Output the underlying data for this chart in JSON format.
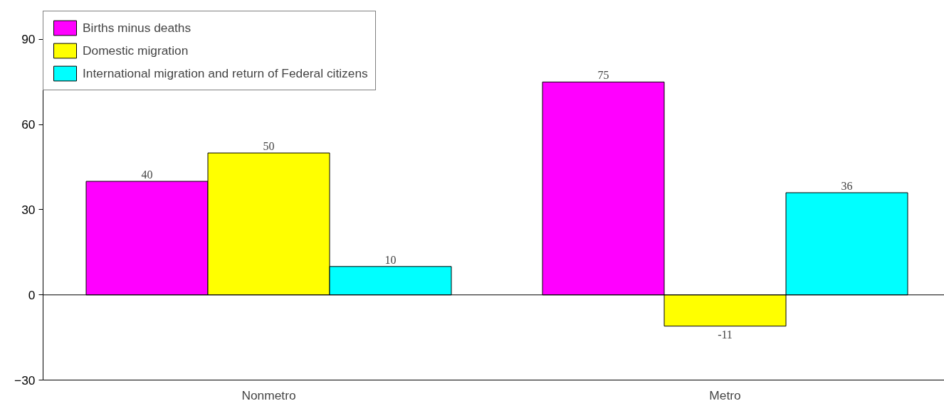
{
  "chart_data": {
    "type": "bar",
    "categories": [
      "Nonmetro",
      "Metro"
    ],
    "series": [
      {
        "name": "Births minus deaths",
        "color": "#ff00ff",
        "values": [
          40,
          75
        ]
      },
      {
        "name": "Domestic migration",
        "color": "#ffff00",
        "values": [
          50,
          -11
        ]
      },
      {
        "name": "International migration and return of Federal citizens",
        "color": "#00ffff",
        "values": [
          10,
          36
        ]
      }
    ],
    "ylim": [
      -30,
      100
    ],
    "yticks": [
      -30,
      0,
      30,
      60,
      90
    ],
    "data_labels": true,
    "grid": false,
    "legend": "top left",
    "ref_lines": [
      {
        "axis": "y",
        "value": 0,
        "color": "#000000"
      }
    ]
  }
}
